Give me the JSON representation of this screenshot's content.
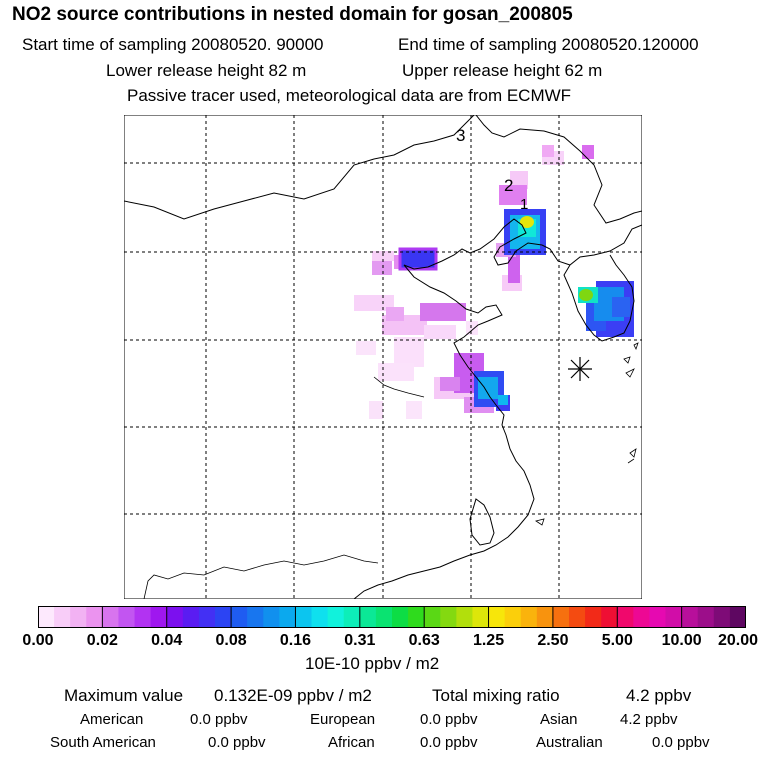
{
  "title": "NO2 source contributions in nested domain for gosan_200805",
  "header": {
    "start": "Start time of sampling 20080520. 90000",
    "end": "End time of sampling 20080520.120000",
    "lower": "Lower release height   82 m",
    "upper": "Upper release height   62 m",
    "note": "Passive tracer used, meteorological data are from ECMWF"
  },
  "map": {
    "markers": [
      "1",
      "2",
      "3"
    ],
    "receptor_symbol": "gosan-receptor"
  },
  "colorbar": {
    "ticks": [
      "0.00",
      "0.02",
      "0.04",
      "0.08",
      "0.16",
      "0.31",
      "0.63",
      "1.25",
      "2.50",
      "5.00",
      "10.00",
      "20.00"
    ],
    "colors": [
      "#fde9fd",
      "#f8cdf8",
      "#f2b2f3",
      "#eb93ef",
      "#d874ee",
      "#c255f1",
      "#b233f2",
      "#9f17ef",
      "#7c10ef",
      "#5a1cf2",
      "#4330f4",
      "#2c44f3",
      "#1f5cf1",
      "#1876ef",
      "#1190ee",
      "#0ba9ee",
      "#0cc5ef",
      "#0fe0ee",
      "#11f2dc",
      "#0deeb9",
      "#0be896",
      "#0ae371",
      "#0ddd45",
      "#2fdb1d",
      "#5ad815",
      "#84d910",
      "#b2df0c",
      "#dde60a",
      "#f7e60a",
      "#fbcf0b",
      "#fab30c",
      "#f8930e",
      "#f6700f",
      "#f44b11",
      "#f22a18",
      "#ef0f34",
      "#f0086c",
      "#ed0894",
      "#e609b1",
      "#d10da8",
      "#b80f9b",
      "#9c0e8a",
      "#7e0b77",
      "#5e0761"
    ],
    "unit": "10E-10 ppbv / m2"
  },
  "summary": {
    "max_label": "Maximum value",
    "max_value": "0.132E-09 ppbv / m2",
    "total_label": "Total mixing ratio",
    "total_value": "4.2 ppbv",
    "regions": [
      {
        "name": "American",
        "value": "0.0 ppbv"
      },
      {
        "name": "European",
        "value": "0.0 ppbv"
      },
      {
        "name": "Asian",
        "value": "4.2 ppbv"
      },
      {
        "name": "South American",
        "value": "0.0 ppbv"
      },
      {
        "name": "African",
        "value": "0.0 ppbv"
      },
      {
        "name": "Australian",
        "value": "0.0 ppbv"
      }
    ]
  }
}
